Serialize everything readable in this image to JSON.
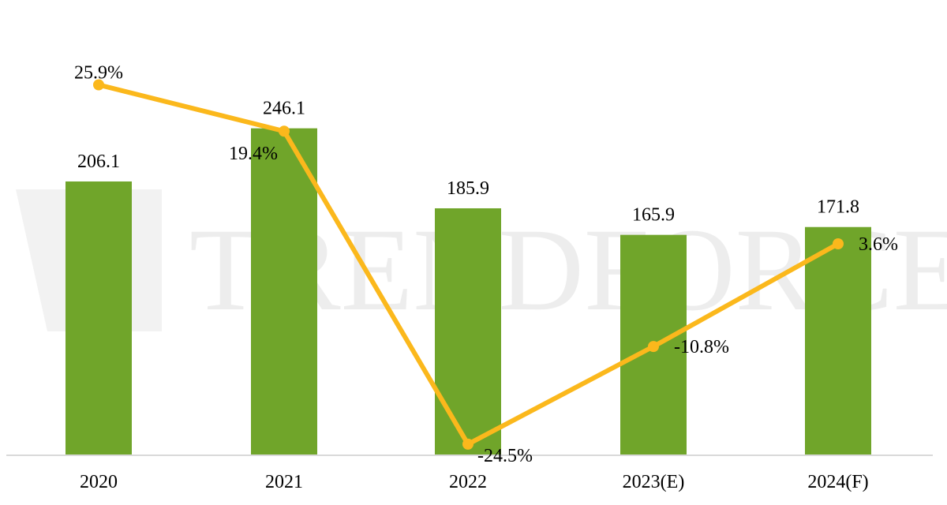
{
  "watermark": {
    "text": "TRENDFORCE"
  },
  "colors": {
    "bar": "#70a52a",
    "line": "#fbb81c",
    "axis": "#d9d9d9",
    "watermark_mark": "#e8e8e8"
  },
  "chart_data": {
    "type": "bar",
    "categories": [
      "2020",
      "2021",
      "2022",
      "2023(E)",
      "2024(F)"
    ],
    "series": [
      {
        "type": "bar",
        "values": [
          206.1,
          246.1,
          185.9,
          165.9,
          171.8
        ],
        "labels": [
          "206.1",
          "246.1",
          "185.9",
          "165.9",
          "171.8"
        ]
      },
      {
        "type": "line",
        "values": [
          25.9,
          19.4,
          -24.5,
          -10.8,
          3.6
        ],
        "labels": [
          "25.9%",
          "19.4%",
          "-24.5%",
          "-10.8%",
          "3.6%"
        ]
      }
    ],
    "title": "",
    "xlabel": "",
    "ylabel": "",
    "ylim": [
      0,
      300
    ],
    "ylim_secondary": [
      -30,
      35
    ],
    "grid": false,
    "legend": "none"
  }
}
